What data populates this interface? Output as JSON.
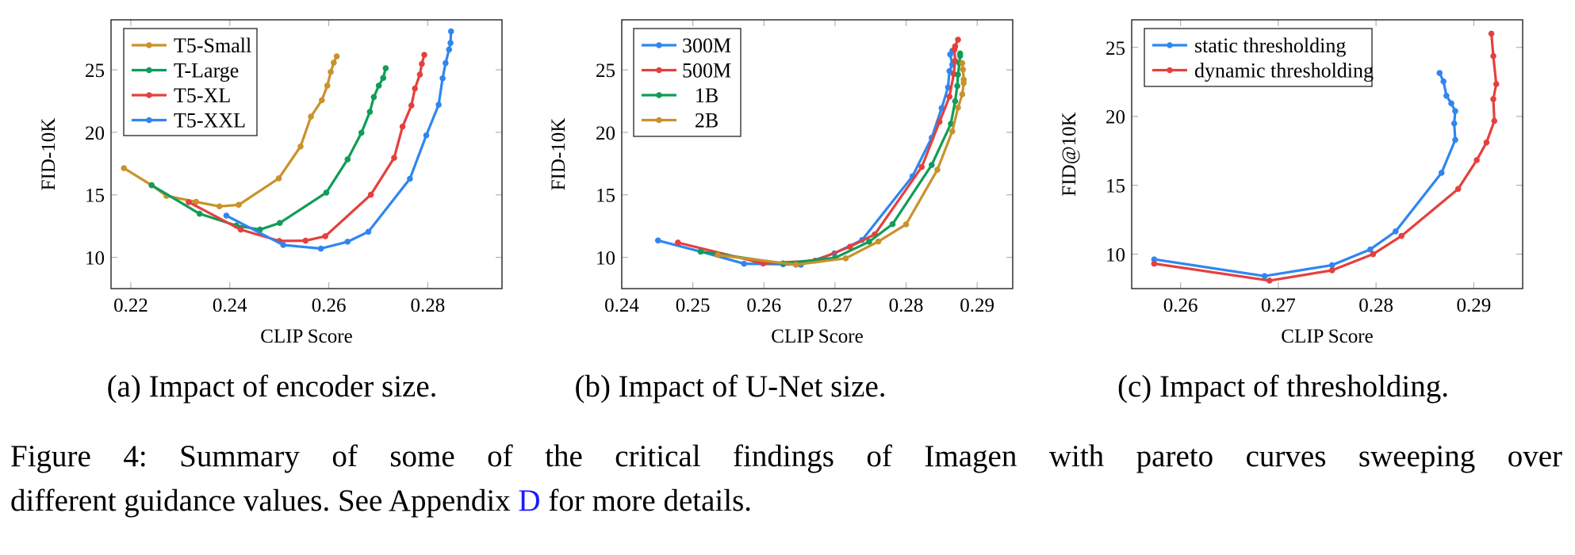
{
  "colors": {
    "gold": "#c9922b",
    "green": "#0f9d58",
    "red": "#e5403d",
    "blue": "#2f86f0",
    "link": "#1a1aff"
  },
  "chart_data": [
    {
      "type": "line",
      "caption": "(a) Impact of encoder size.",
      "xlabel": "CLIP Score",
      "ylabel": "FID-10K",
      "xlim": [
        0.216,
        0.295
      ],
      "ylim": [
        7.5,
        29
      ],
      "xticks": [
        "0.22",
        "0.24",
        "0.26",
        "0.28"
      ],
      "yticks": [
        "10",
        "15",
        "20",
        "25"
      ],
      "grid": false,
      "legend": "top-left",
      "series": [
        {
          "name": "T5-Small",
          "color": "#c9922b",
          "x": [
            0.2186,
            0.2242,
            0.2272,
            0.2332,
            0.2379,
            0.2418,
            0.2499,
            0.2543,
            0.2564,
            0.2586,
            0.2597,
            0.2604,
            0.261,
            0.2616
          ],
          "y": [
            17.14,
            15.77,
            14.92,
            14.44,
            14.08,
            14.2,
            16.32,
            18.87,
            21.26,
            22.57,
            23.73,
            24.83,
            25.57,
            26.08
          ]
        },
        {
          "name": "T-Large",
          "color": "#0f9d58",
          "x": [
            0.2242,
            0.2339,
            0.2413,
            0.2461,
            0.2501,
            0.2595,
            0.2638,
            0.2666,
            0.2683,
            0.2691,
            0.2701,
            0.271,
            0.2715
          ],
          "y": [
            15.77,
            13.49,
            12.54,
            12.22,
            12.75,
            15.18,
            17.84,
            19.97,
            21.64,
            22.82,
            23.73,
            24.35,
            25.13
          ]
        },
        {
          "name": "T5-XL",
          "color": "#e5403d",
          "x": [
            0.2317,
            0.2422,
            0.25,
            0.2553,
            0.2593,
            0.2685,
            0.2732,
            0.2749,
            0.2767,
            0.2774,
            0.2784,
            0.2788,
            0.2793
          ],
          "y": [
            14.42,
            12.22,
            11.31,
            11.33,
            11.69,
            15.01,
            17.96,
            20.46,
            22.15,
            23.5,
            24.62,
            25.48,
            26.2
          ]
        },
        {
          "name": "T5-XXL",
          "color": "#2f86f0",
          "x": [
            0.2393,
            0.2508,
            0.2584,
            0.2638,
            0.268,
            0.2764,
            0.2797,
            0.2822,
            0.283,
            0.2836,
            0.2843,
            0.2846,
            0.2847
          ],
          "y": [
            13.34,
            10.99,
            10.7,
            11.25,
            12.05,
            16.29,
            19.76,
            22.21,
            24.32,
            25.54,
            26.62,
            27.15,
            28.08
          ]
        }
      ]
    },
    {
      "type": "line",
      "caption": "(b) Impact of U-Net size.",
      "xlabel": "CLIP Score",
      "ylabel": "FID-10K",
      "xlim": [
        0.24,
        0.295
      ],
      "ylim": [
        7.5,
        29
      ],
      "xticks": [
        "0.24",
        "0.25",
        "0.26",
        "0.27",
        "0.28",
        "0.29"
      ],
      "yticks": [
        "10",
        "15",
        "20",
        "25"
      ],
      "grid": false,
      "legend": "top-left",
      "series": [
        {
          "name": "300M",
          "color": "#2f86f0",
          "x": [
            0.2451,
            0.2511,
            0.2572,
            0.2627,
            0.2652,
            0.2699,
            0.2738,
            0.2809,
            0.2836,
            0.285,
            0.2859,
            0.2861,
            0.2865,
            0.2862,
            0.2865
          ],
          "y": [
            11.35,
            10.46,
            9.49,
            9.45,
            9.41,
            10.32,
            11.39,
            16.49,
            19.57,
            21.94,
            23.59,
            24.9,
            25.42,
            26.23,
            26.52
          ]
        },
        {
          "name": "500M",
          "color": "#e5403d",
          "x": [
            0.2479,
            0.2599,
            0.2672,
            0.2721,
            0.2756,
            0.2822,
            0.2847,
            0.2861,
            0.2867,
            0.2869,
            0.2868,
            0.2869,
            0.2873
          ],
          "y": [
            11.18,
            9.51,
            9.73,
            10.85,
            11.84,
            17.23,
            20.84,
            22.85,
            24.66,
            25.72,
            26.63,
            26.88,
            27.41
          ]
        },
        {
          "name": "1B",
          "color": "#0f9d58",
          "x": [
            0.2511,
            0.2627,
            0.27,
            0.2748,
            0.2781,
            0.2836,
            0.2863,
            0.2869,
            0.2872,
            0.2873,
            0.2875,
            0.2876,
            0.2876
          ],
          "y": [
            10.46,
            9.51,
            9.96,
            11.25,
            12.66,
            17.39,
            20.69,
            22.49,
            23.71,
            24.62,
            25.53,
            26.12,
            26.31
          ]
        },
        {
          "name": "2B",
          "color": "#c9922b",
          "x": [
            0.2535,
            0.2645,
            0.2715,
            0.2761,
            0.28,
            0.2844,
            0.2865,
            0.2873,
            0.2879,
            0.2881,
            0.2881,
            0.288,
            0.2879
          ],
          "y": [
            10.19,
            9.41,
            9.92,
            11.27,
            12.64,
            17.01,
            20.08,
            21.98,
            23.04,
            23.94,
            24.22,
            25.02,
            25.53
          ]
        }
      ]
    },
    {
      "type": "line",
      "caption": "(c) Impact of thresholding.",
      "xlabel": "CLIP Score",
      "ylabel": "FID@10K",
      "xlim": [
        0.255,
        0.295
      ],
      "ylim": [
        7.5,
        27
      ],
      "xticks": [
        "0.26",
        "0.27",
        "0.28",
        "0.29"
      ],
      "yticks": [
        "10",
        "15",
        "20",
        "25"
      ],
      "grid": false,
      "legend": "top-left",
      "series": [
        {
          "name": "static thresholding",
          "color": "#2f86f0",
          "x": [
            0.2573,
            0.2686,
            0.2755,
            0.2794,
            0.282,
            0.2867,
            0.2881,
            0.288,
            0.2881,
            0.2877,
            0.2872,
            0.2869,
            0.2865
          ],
          "y": [
            9.62,
            8.41,
            9.2,
            10.34,
            11.65,
            15.9,
            18.29,
            19.48,
            20.38,
            20.94,
            21.49,
            22.53,
            23.14
          ]
        },
        {
          "name": "dynamic thresholding",
          "color": "#e5403d",
          "x": [
            0.2573,
            0.2691,
            0.2755,
            0.2797,
            0.2826,
            0.2884,
            0.2903,
            0.2913,
            0.2921,
            0.292,
            0.2923,
            0.292,
            0.2918
          ],
          "y": [
            9.31,
            8.08,
            8.83,
            10.0,
            11.32,
            14.73,
            16.82,
            18.1,
            19.66,
            21.25,
            22.34,
            24.37,
            26.0
          ]
        }
      ]
    }
  ],
  "figure_caption": {
    "line1": "Figure 4: Summary of some of the critical findings of Imagen with pareto curves sweeping over",
    "line2_before": "different guidance values. See Appendix ",
    "line2_link": "D",
    "line2_after": " for more details."
  }
}
